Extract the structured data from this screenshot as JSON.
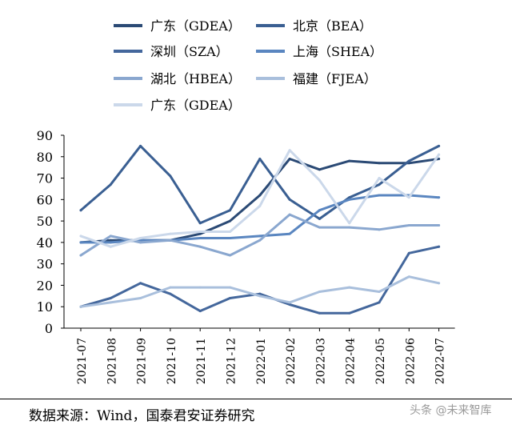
{
  "chart_data": {
    "type": "line",
    "title": "",
    "xlabel": "",
    "ylabel": "",
    "ylim": [
      0,
      90
    ],
    "yticks": [
      0,
      10,
      20,
      30,
      40,
      50,
      60,
      70,
      80,
      90
    ],
    "categories": [
      "2021-07",
      "2021-08",
      "2021-09",
      "2021-10",
      "2021-11",
      "2021-12",
      "2022-01",
      "2022-02",
      "2022-03",
      "2022-04",
      "2022-05",
      "2022-06",
      "2022-07"
    ],
    "grid": false,
    "legend_position": "top",
    "series": [
      {
        "name": "广东（GDEA）",
        "color": "#2b4a75",
        "values": [
          40,
          41,
          41,
          41,
          44,
          50,
          62,
          79,
          74,
          78,
          77,
          77,
          79
        ]
      },
      {
        "name": "北京（BEA）",
        "color": "#3a5f92",
        "values": [
          55,
          67,
          85,
          71,
          49,
          55,
          79,
          60,
          51,
          61,
          67,
          78,
          85
        ]
      },
      {
        "name": "深圳（SZA）",
        "color": "#44679c",
        "values": [
          10,
          14,
          21,
          16,
          8,
          14,
          16,
          11,
          7,
          7,
          12,
          35,
          38
        ]
      },
      {
        "name": "上海（SHEA）",
        "color": "#5a86c0",
        "values": [
          40,
          40,
          41,
          41,
          42,
          42,
          43,
          44,
          55,
          60,
          62,
          62,
          61
        ]
      },
      {
        "name": "湖北（HBEA）",
        "color": "#8aa7cf",
        "values": [
          34,
          43,
          40,
          41,
          38,
          34,
          41,
          53,
          47,
          47,
          46,
          48,
          48
        ]
      },
      {
        "name": "福建（FJEA）",
        "color": "#a9bfdc",
        "values": [
          10,
          12,
          14,
          19,
          19,
          19,
          15,
          12,
          17,
          19,
          17,
          24,
          21
        ]
      },
      {
        "name": "广东（GDEA）",
        "color": "#cbd8ea",
        "values": [
          43,
          38,
          42,
          44,
          45,
          45,
          57,
          83,
          69,
          49,
          70,
          61,
          81
        ]
      }
    ]
  },
  "footer": {
    "source": "数据来源：Wind，国泰君安证券研究",
    "watermark": "头条 @未来智库"
  }
}
